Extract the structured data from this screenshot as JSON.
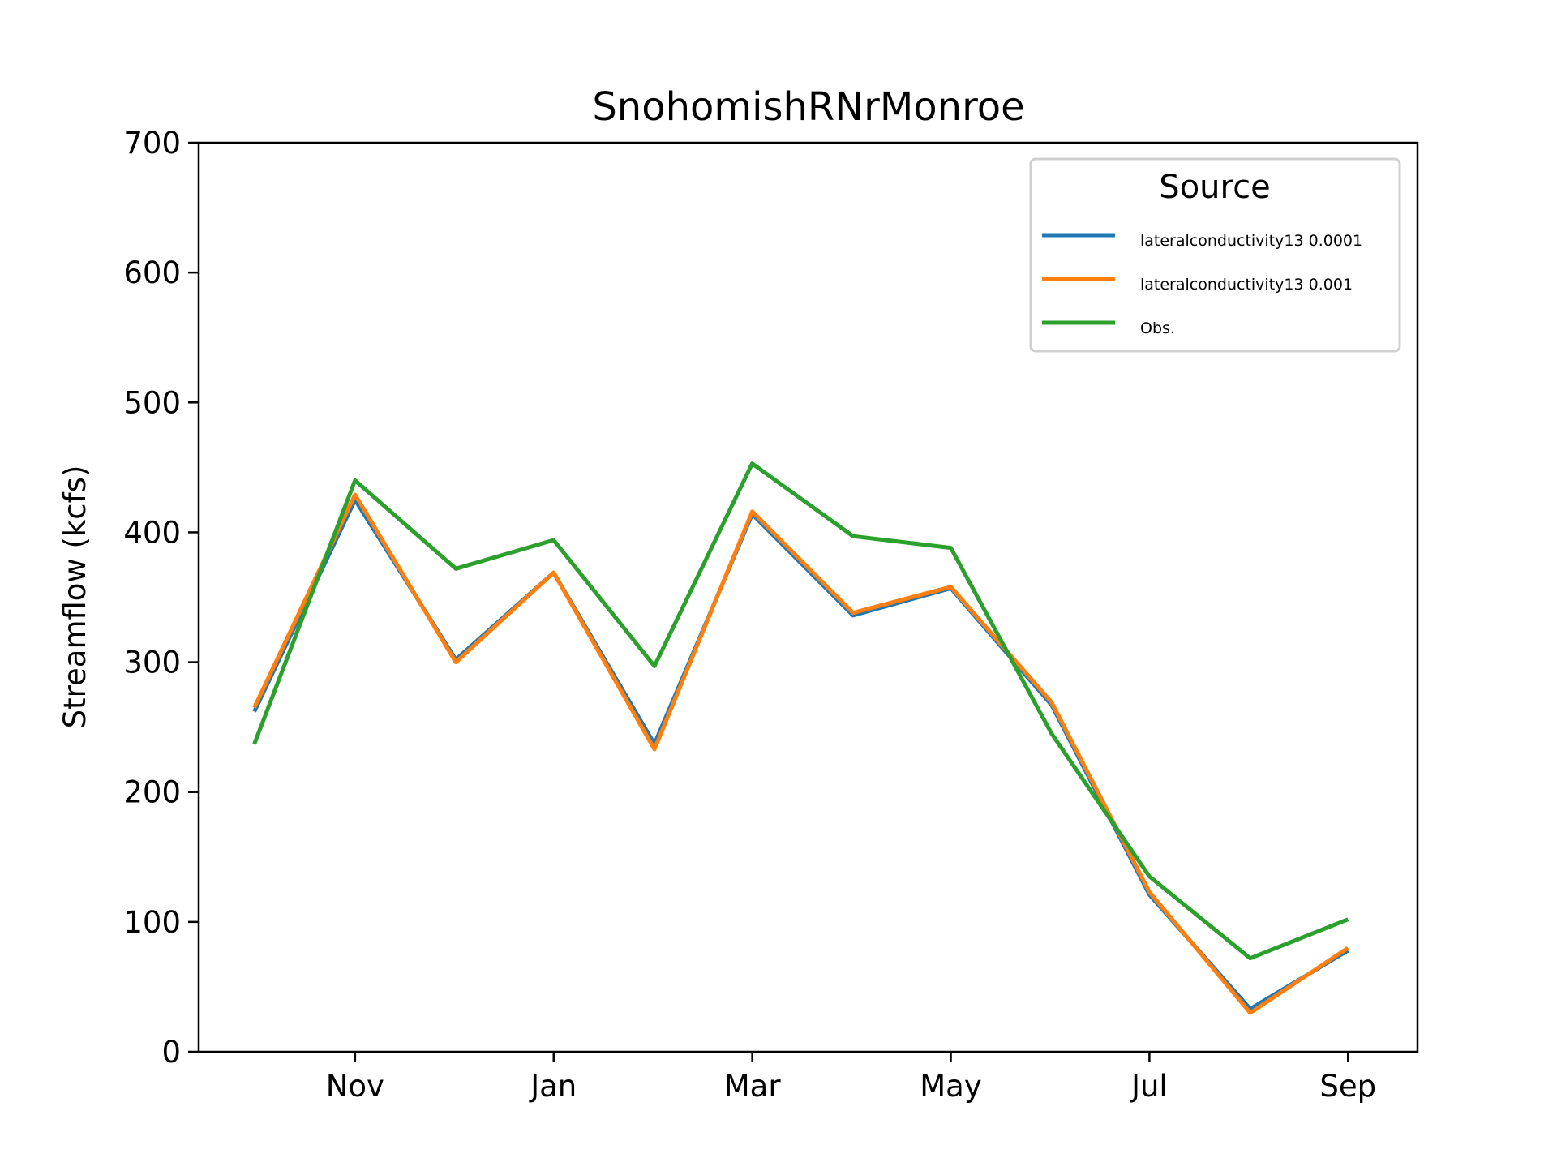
{
  "chart_data": {
    "type": "line",
    "title": "SnohomishRNrMonroe",
    "xlabel": "",
    "ylabel": "Streamflow (kcfs)",
    "ylim": [
      0,
      700
    ],
    "yticks": [
      0,
      100,
      200,
      300,
      400,
      500,
      600,
      700
    ],
    "ytick_labels": [
      "0",
      "100",
      "200",
      "300",
      "400",
      "500",
      "600",
      "700"
    ],
    "x_axis": "months of water year (Oct through Sep), positioned by month index",
    "xlim": [
      -1.0,
      11.275
    ],
    "x_ticks": [
      {
        "x": 0.575,
        "label": "Nov"
      },
      {
        "x": 2.575,
        "label": "Jan"
      },
      {
        "x": 4.575,
        "label": "Mar"
      },
      {
        "x": 6.575,
        "label": "May"
      },
      {
        "x": 8.575,
        "label": "Jul"
      },
      {
        "x": 10.575,
        "label": "Sep"
      }
    ],
    "x": [
      -0.44,
      0.575,
      1.59,
      2.575,
      3.59,
      4.575,
      5.59,
      6.575,
      7.59,
      8.575,
      9.59,
      10.575
    ],
    "grid": false,
    "legend": {
      "title": "Source",
      "placement": "top-right"
    },
    "series": [
      {
        "name": "lateralconductivity13 0.0001",
        "color": "#1f77b4",
        "values": [
          262,
          425,
          302,
          369,
          237,
          414,
          336,
          357,
          267,
          121,
          33,
          78
        ]
      },
      {
        "name": "lateralconductivity13 0.001",
        "color": "#ff7f0e",
        "values": [
          265,
          429,
          300,
          369,
          233,
          416,
          338,
          358,
          269,
          123,
          30,
          80
        ]
      },
      {
        "name": "Obs.",
        "color": "#2ca02c",
        "values": [
          237,
          440,
          372,
          394,
          297,
          453,
          397,
          388,
          245,
          135,
          72,
          102
        ]
      }
    ]
  }
}
